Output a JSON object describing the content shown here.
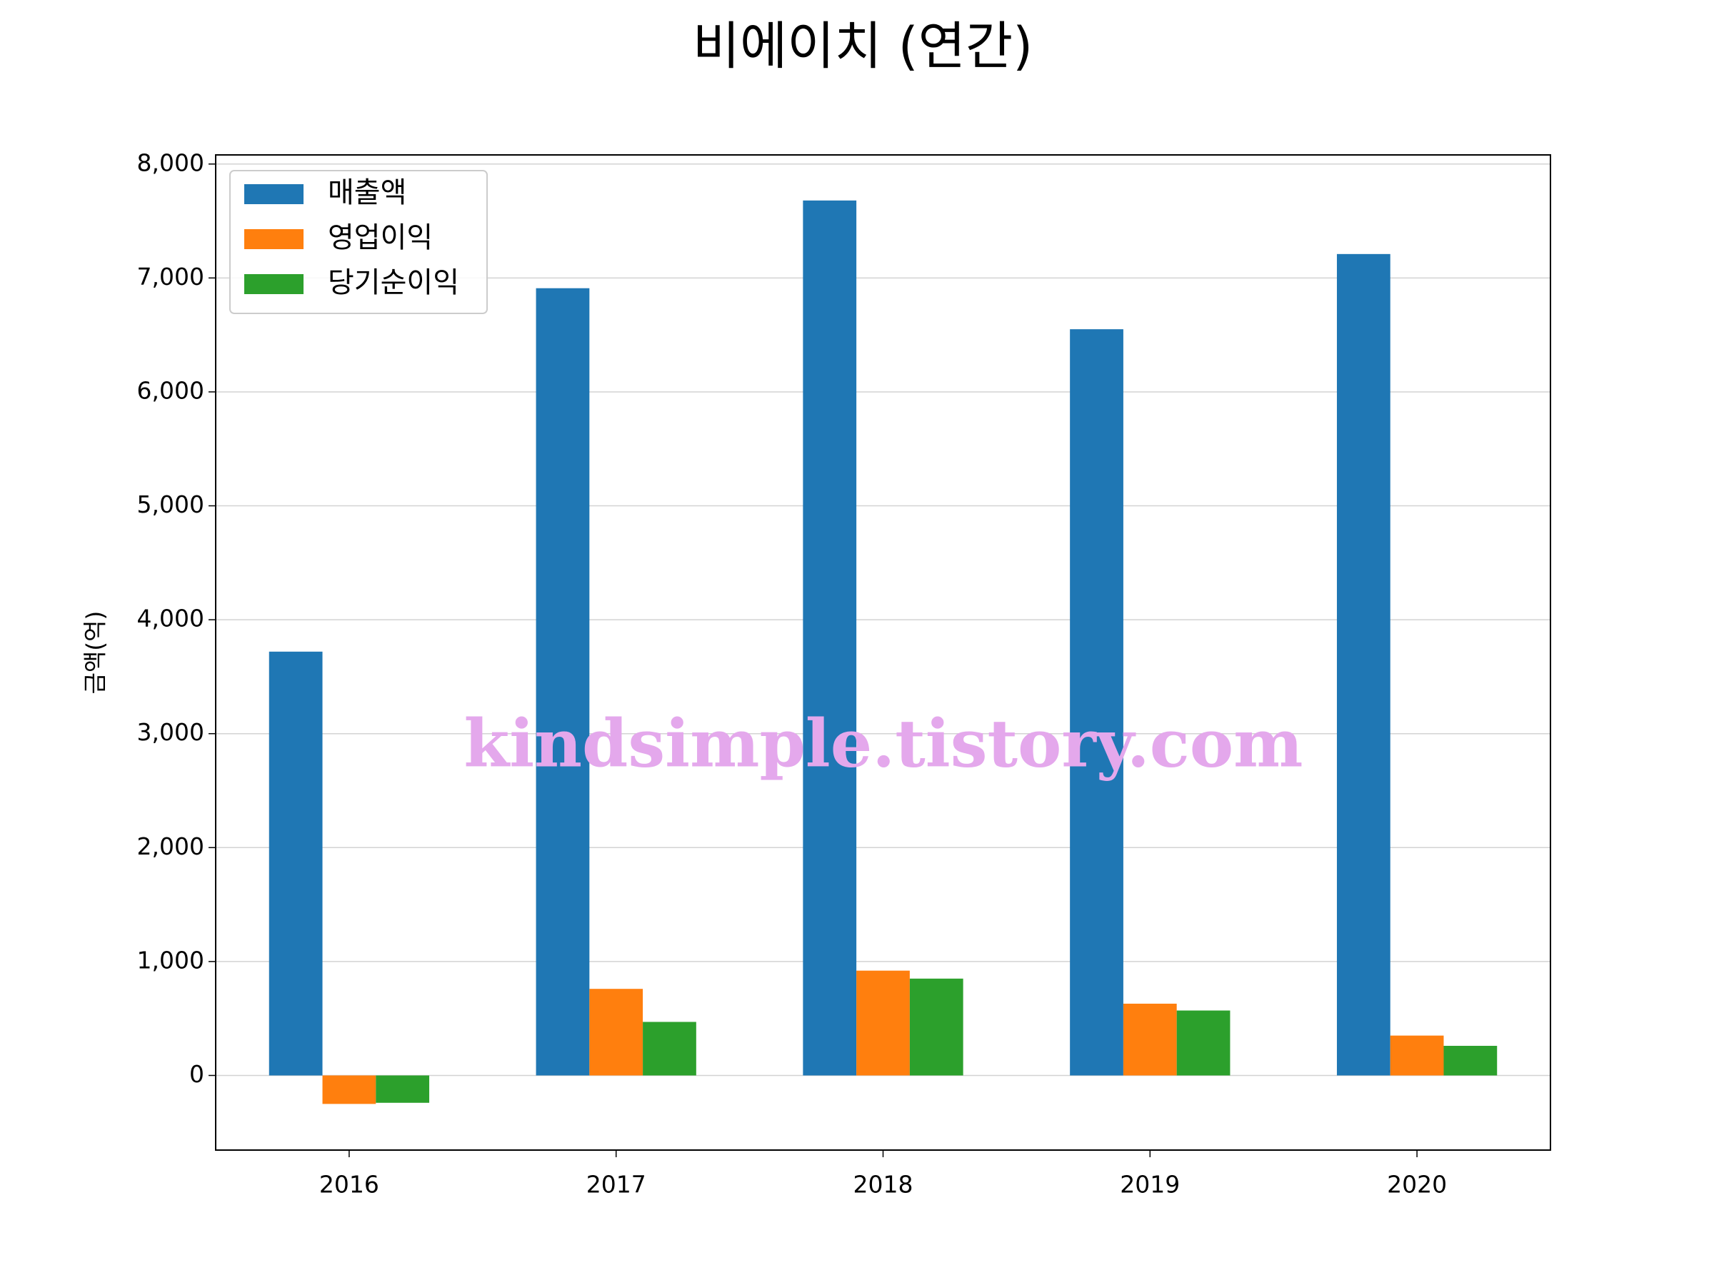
{
  "chart_data": {
    "type": "bar",
    "title": "비에이치 (연간)",
    "y_label": "금액(억)",
    "categories": [
      "2016",
      "2017",
      "2018",
      "2019",
      "2020"
    ],
    "series": [
      {
        "name": "매출액",
        "color": "#1f77b4",
        "values": [
          3720,
          6910,
          7680,
          6550,
          7210
        ]
      },
      {
        "name": "영업이익",
        "color": "#ff7f0e",
        "values": [
          -250,
          760,
          920,
          630,
          350
        ]
      },
      {
        "name": "당기순이익",
        "color": "#2ca02c",
        "values": [
          -240,
          470,
          850,
          570,
          260
        ]
      }
    ],
    "ylim": [
      -655,
      8080
    ],
    "yticks": [
      0,
      {
        "value": 1000,
        "label": "1,000"
      },
      {
        "value": 2000,
        "label": "2,000"
      },
      {
        "value": 3000,
        "label": "3,000"
      },
      {
        "value": 4000,
        "label": "4,000"
      },
      {
        "value": 5000,
        "label": "5,000"
      },
      {
        "value": 6000,
        "label": "6,000"
      },
      {
        "value": 7000,
        "label": "7,000"
      },
      {
        "value": 8000,
        "label": "8,000"
      }
    ],
    "grid": true,
    "legend": "upper left",
    "watermark": "kindsimple.tistory.com"
  }
}
